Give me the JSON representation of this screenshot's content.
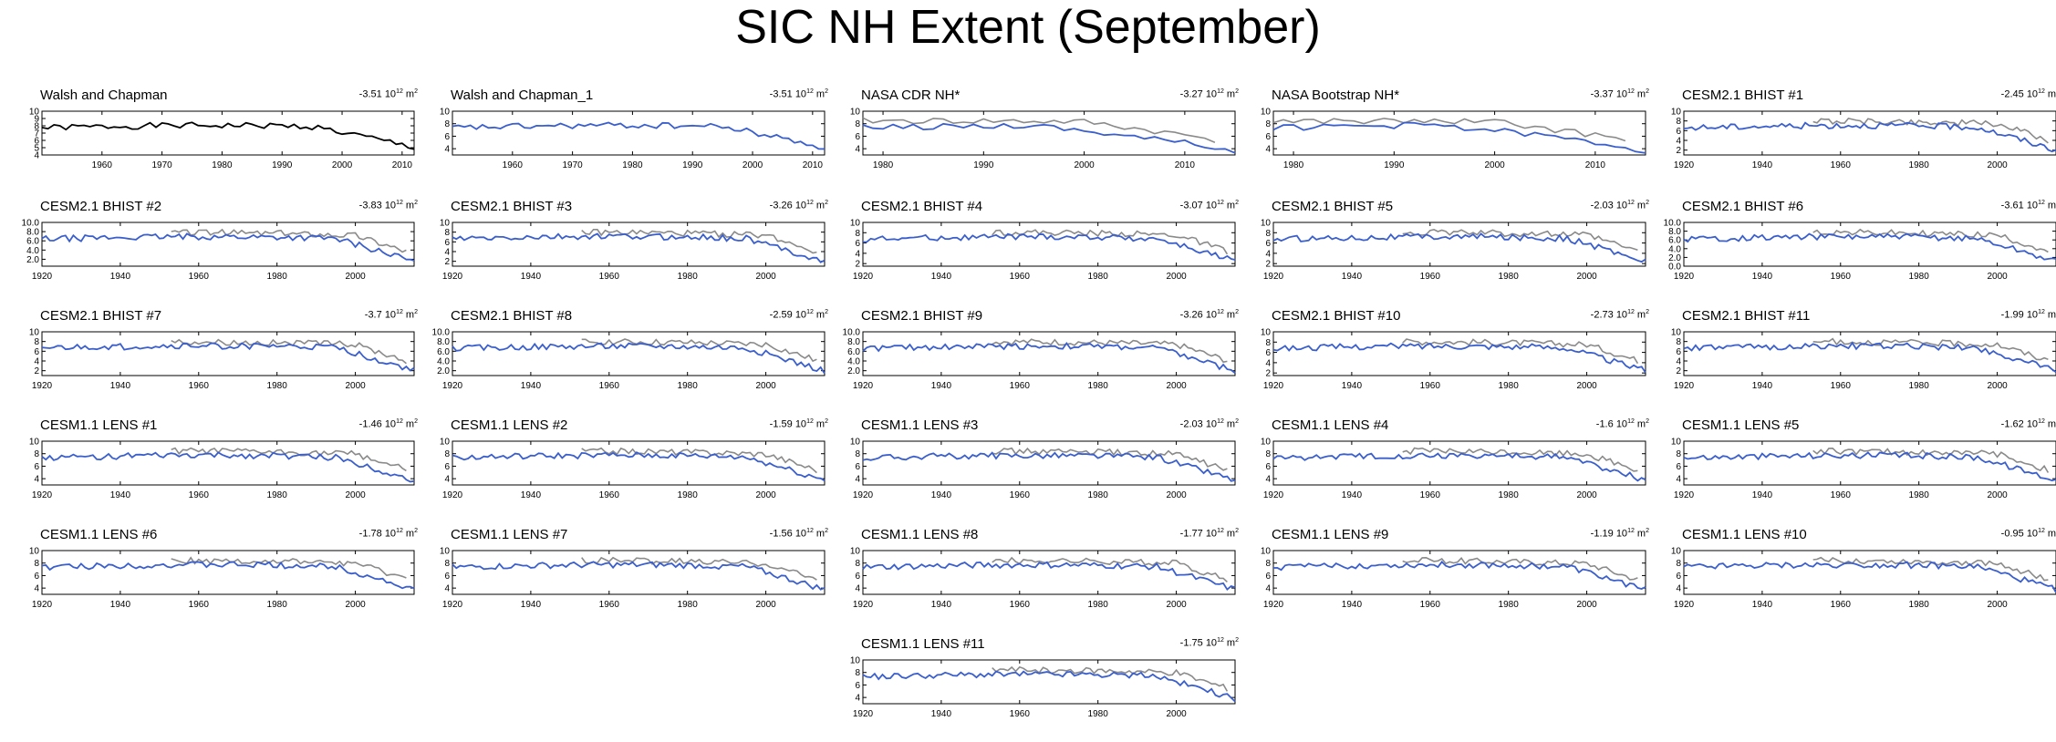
{
  "title": "SIC NH Extent (September)",
  "colors": {
    "obs": "#000000",
    "model": "#3a5fcd",
    "reference": "#8a8a8a"
  },
  "trend_unit_base": "10",
  "trend_unit_exp": "12",
  "trend_unit_tail": "m",
  "trend_unit_sq": "2",
  "chart_data": [
    {
      "type": "line",
      "title": "Walsh and Chapman",
      "trend": "-3.51",
      "xlim": [
        1950,
        2012
      ],
      "xticks": [
        1960,
        1970,
        1980,
        1990,
        2000,
        2010
      ],
      "ylim": [
        4,
        10
      ],
      "yticks": [
        "4",
        "5",
        "6",
        "7",
        "8",
        "9",
        "10"
      ],
      "main_color": "obs",
      "reference": false
    },
    {
      "type": "line",
      "title": "Walsh and Chapman_1",
      "trend": "-3.51",
      "xlim": [
        1950,
        2012
      ],
      "xticks": [
        1960,
        1970,
        1980,
        1990,
        2000,
        2010
      ],
      "ylim": [
        3,
        10
      ],
      "yticks": [
        "4",
        "6",
        "8",
        "10"
      ],
      "main_color": "model",
      "reference": false
    },
    {
      "type": "line",
      "title": "NASA CDR NH*",
      "trend": "-3.27",
      "xlim": [
        1978,
        2015
      ],
      "xticks": [
        1980,
        1990,
        2000,
        2010
      ],
      "ylim": [
        3,
        10
      ],
      "yticks": [
        "4",
        "6",
        "8",
        "10"
      ],
      "main_color": "model",
      "reference": true,
      "ref_start": 1978
    },
    {
      "type": "line",
      "title": "NASA Bootstrap NH*",
      "trend": "-3.37",
      "xlim": [
        1978,
        2015
      ],
      "xticks": [
        1980,
        1990,
        2000,
        2010
      ],
      "ylim": [
        3,
        10
      ],
      "yticks": [
        "4",
        "6",
        "8",
        "10"
      ],
      "main_color": "model",
      "reference": true,
      "ref_start": 1978
    },
    {
      "type": "line",
      "title": "CESM2.1 BHIST #1",
      "trend": "-2.45",
      "xlim": [
        1920,
        2015
      ],
      "xticks": [
        1920,
        1940,
        1960,
        1980,
        2000
      ],
      "ylim": [
        1,
        10
      ],
      "yticks": [
        "2",
        "4",
        "6",
        "8",
        "10"
      ],
      "main_color": "model",
      "reference": true,
      "ref_start": 1953
    },
    {
      "type": "line",
      "title": "CESM2.1 BHIST #2",
      "trend": "-3.83",
      "xlim": [
        1920,
        2015
      ],
      "xticks": [
        1920,
        1940,
        1960,
        1980,
        2000
      ],
      "ylim": [
        0.5,
        10
      ],
      "yticks": [
        "2.0",
        "4.0",
        "6.0",
        "8.0",
        "10.0"
      ],
      "main_color": "model",
      "reference": true,
      "ref_start": 1953
    },
    {
      "type": "line",
      "title": "CESM2.1 BHIST #3",
      "trend": "-3.26",
      "xlim": [
        1920,
        2015
      ],
      "xticks": [
        1920,
        1940,
        1960,
        1980,
        2000
      ],
      "ylim": [
        1,
        10
      ],
      "yticks": [
        "2",
        "4",
        "6",
        "8",
        "10"
      ],
      "main_color": "model",
      "reference": true,
      "ref_start": 1953
    },
    {
      "type": "line",
      "title": "CESM2.1 BHIST #4",
      "trend": "-3.07",
      "xlim": [
        1920,
        2015
      ],
      "xticks": [
        1920,
        1940,
        1960,
        1980,
        2000
      ],
      "ylim": [
        1.5,
        10
      ],
      "yticks": [
        "2",
        "4",
        "6",
        "8",
        "10"
      ],
      "main_color": "model",
      "reference": true,
      "ref_start": 1953
    },
    {
      "type": "line",
      "title": "CESM2.1 BHIST #5",
      "trend": "-2.03",
      "xlim": [
        1920,
        2015
      ],
      "xticks": [
        1920,
        1940,
        1960,
        1980,
        2000
      ],
      "ylim": [
        1.5,
        10
      ],
      "yticks": [
        "2",
        "4",
        "6",
        "8",
        "10"
      ],
      "main_color": "model",
      "reference": true,
      "ref_start": 1953
    },
    {
      "type": "line",
      "title": "CESM2.1 BHIST #6",
      "trend": "-3.61",
      "xlim": [
        1920,
        2015
      ],
      "xticks": [
        1920,
        1940,
        1960,
        1980,
        2000
      ],
      "ylim": [
        0,
        10
      ],
      "yticks": [
        "0.0",
        "2.0",
        "4.0",
        "6.0",
        "8.0",
        "10.0"
      ],
      "main_color": "model",
      "reference": true,
      "ref_start": 1953
    },
    {
      "type": "line",
      "title": "CESM2.1 BHIST #7",
      "trend": "-3.7",
      "xlim": [
        1920,
        2015
      ],
      "xticks": [
        1920,
        1940,
        1960,
        1980,
        2000
      ],
      "ylim": [
        1,
        10
      ],
      "yticks": [
        "2",
        "4",
        "6",
        "8",
        "10"
      ],
      "main_color": "model",
      "reference": true,
      "ref_start": 1953
    },
    {
      "type": "line",
      "title": "CESM2.1 BHIST #8",
      "trend": "-2.59",
      "xlim": [
        1920,
        2015
      ],
      "xticks": [
        1920,
        1940,
        1960,
        1980,
        2000
      ],
      "ylim": [
        1,
        10
      ],
      "yticks": [
        "2.0",
        "4.0",
        "6.0",
        "8.0",
        "10.0"
      ],
      "main_color": "model",
      "reference": true,
      "ref_start": 1953
    },
    {
      "type": "line",
      "title": "CESM2.1 BHIST #9",
      "trend": "-3.26",
      "xlim": [
        1920,
        2015
      ],
      "xticks": [
        1920,
        1940,
        1960,
        1980,
        2000
      ],
      "ylim": [
        1,
        10
      ],
      "yticks": [
        "2.0",
        "4.0",
        "6.0",
        "8.0",
        "10.0"
      ],
      "main_color": "model",
      "reference": true,
      "ref_start": 1953
    },
    {
      "type": "line",
      "title": "CESM2.1 BHIST #10",
      "trend": "-2.73",
      "xlim": [
        1920,
        2015
      ],
      "xticks": [
        1920,
        1940,
        1960,
        1980,
        2000
      ],
      "ylim": [
        1.5,
        10
      ],
      "yticks": [
        "2",
        "4",
        "6",
        "8",
        "10"
      ],
      "main_color": "model",
      "reference": true,
      "ref_start": 1953
    },
    {
      "type": "line",
      "title": "CESM2.1 BHIST #11",
      "trend": "-1.99",
      "xlim": [
        1920,
        2015
      ],
      "xticks": [
        1920,
        1940,
        1960,
        1980,
        2000
      ],
      "ylim": [
        1,
        10
      ],
      "yticks": [
        "2",
        "4",
        "6",
        "8",
        "10"
      ],
      "main_color": "model",
      "reference": true,
      "ref_start": 1953
    },
    {
      "type": "line",
      "title": "CESM1.1 LENS #1",
      "trend": "-1.46",
      "xlim": [
        1920,
        2015
      ],
      "xticks": [
        1920,
        1940,
        1960,
        1980,
        2000
      ],
      "ylim": [
        3,
        10
      ],
      "yticks": [
        "4",
        "6",
        "8",
        "10"
      ],
      "main_color": "model",
      "reference": true,
      "ref_start": 1953
    },
    {
      "type": "line",
      "title": "CESM1.1 LENS #2",
      "trend": "-1.59",
      "xlim": [
        1920,
        2015
      ],
      "xticks": [
        1920,
        1940,
        1960,
        1980,
        2000
      ],
      "ylim": [
        3,
        10
      ],
      "yticks": [
        "4",
        "6",
        "8",
        "10"
      ],
      "main_color": "model",
      "reference": true,
      "ref_start": 1953
    },
    {
      "type": "line",
      "title": "CESM1.1 LENS #3",
      "trend": "-2.03",
      "xlim": [
        1920,
        2015
      ],
      "xticks": [
        1920,
        1940,
        1960,
        1980,
        2000
      ],
      "ylim": [
        3,
        10
      ],
      "yticks": [
        "4",
        "6",
        "8",
        "10"
      ],
      "main_color": "model",
      "reference": true,
      "ref_start": 1953
    },
    {
      "type": "line",
      "title": "CESM1.1 LENS #4",
      "trend": "-1.6",
      "xlim": [
        1920,
        2015
      ],
      "xticks": [
        1920,
        1940,
        1960,
        1980,
        2000
      ],
      "ylim": [
        3,
        10
      ],
      "yticks": [
        "4",
        "6",
        "8",
        "10"
      ],
      "main_color": "model",
      "reference": true,
      "ref_start": 1953
    },
    {
      "type": "line",
      "title": "CESM1.1 LENS #5",
      "trend": "-1.62",
      "xlim": [
        1920,
        2015
      ],
      "xticks": [
        1920,
        1940,
        1960,
        1980,
        2000
      ],
      "ylim": [
        3,
        10
      ],
      "yticks": [
        "4",
        "6",
        "8",
        "10"
      ],
      "main_color": "model",
      "reference": true,
      "ref_start": 1953
    },
    {
      "type": "line",
      "title": "CESM1.1 LENS #6",
      "trend": "-1.78",
      "xlim": [
        1920,
        2015
      ],
      "xticks": [
        1920,
        1940,
        1960,
        1980,
        2000
      ],
      "ylim": [
        3,
        10
      ],
      "yticks": [
        "4",
        "6",
        "8",
        "10"
      ],
      "main_color": "model",
      "reference": true,
      "ref_start": 1953
    },
    {
      "type": "line",
      "title": "CESM1.1 LENS #7",
      "trend": "-1.56",
      "xlim": [
        1920,
        2015
      ],
      "xticks": [
        1920,
        1940,
        1960,
        1980,
        2000
      ],
      "ylim": [
        3,
        10
      ],
      "yticks": [
        "4",
        "6",
        "8",
        "10"
      ],
      "main_color": "model",
      "reference": true,
      "ref_start": 1953
    },
    {
      "type": "line",
      "title": "CESM1.1 LENS #8",
      "trend": "-1.77",
      "xlim": [
        1920,
        2015
      ],
      "xticks": [
        1920,
        1940,
        1960,
        1980,
        2000
      ],
      "ylim": [
        3,
        10
      ],
      "yticks": [
        "4",
        "6",
        "8",
        "10"
      ],
      "main_color": "model",
      "reference": true,
      "ref_start": 1953
    },
    {
      "type": "line",
      "title": "CESM1.1 LENS #9",
      "trend": "-1.19",
      "xlim": [
        1920,
        2015
      ],
      "xticks": [
        1920,
        1940,
        1960,
        1980,
        2000
      ],
      "ylim": [
        3,
        10
      ],
      "yticks": [
        "4",
        "6",
        "8",
        "10"
      ],
      "main_color": "model",
      "reference": true,
      "ref_start": 1953
    },
    {
      "type": "line",
      "title": "CESM1.1 LENS #10",
      "trend": "-0.95",
      "xlim": [
        1920,
        2015
      ],
      "xticks": [
        1920,
        1940,
        1960,
        1980,
        2000
      ],
      "ylim": [
        3,
        10
      ],
      "yticks": [
        "4",
        "6",
        "8",
        "10"
      ],
      "main_color": "model",
      "reference": true,
      "ref_start": 1953
    },
    {
      "type": "line",
      "title": "CESM1.1 LENS #11",
      "trend": "-1.75",
      "xlim": [
        1920,
        2015
      ],
      "xticks": [
        1920,
        1940,
        1960,
        1980,
        2000
      ],
      "ylim": [
        3,
        10
      ],
      "yticks": [
        "4",
        "6",
        "8",
        "10"
      ],
      "main_color": "model",
      "reference": true,
      "ref_start": 1953
    }
  ]
}
